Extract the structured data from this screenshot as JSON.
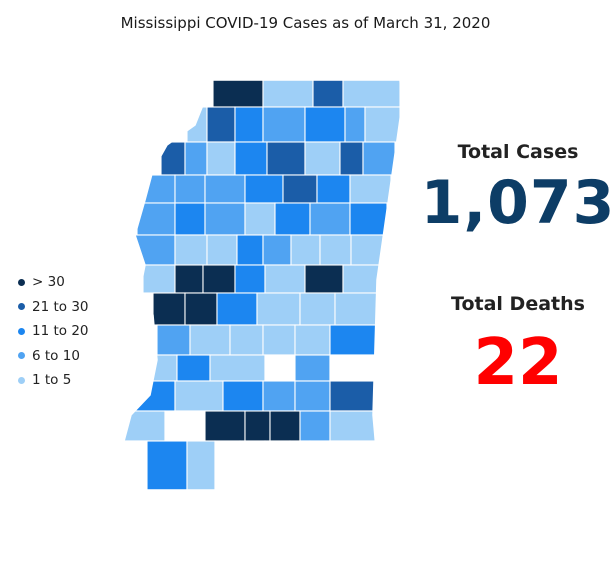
{
  "title": "Mississippi COVID-19 Cases as of March 31, 2020",
  "legend": [
    {
      "label": "> 30",
      "color": "#0b2e52"
    },
    {
      "label": "21 to 30",
      "color": "#1b5da8"
    },
    {
      "label": "11 to 20",
      "color": "#1c86f0"
    },
    {
      "label": "6 to 10",
      "color": "#50a3f2"
    },
    {
      "label": "1 to 5",
      "color": "#9ecff7"
    }
  ],
  "no_cases_color": "#ffffff",
  "stats": {
    "cases_label": "Total Cases",
    "cases_value": "1,073",
    "deaths_label": "Total Deaths",
    "deaths_value": "22"
  },
  "colors": {
    "cases_value": "#0d3d66",
    "deaths_value": "#ff0000"
  },
  "counties": [
    {
      "bin": 0
    },
    {
      "bin": 4
    },
    {
      "bin": 1
    },
    {
      "bin": 4
    },
    {
      "bin": 4
    },
    {
      "bin": 1
    },
    {
      "bin": 2
    },
    {
      "bin": 3
    },
    {
      "bin": 2
    },
    {
      "bin": 3
    },
    {
      "bin": 4
    },
    {
      "bin": 1
    },
    {
      "bin": 3
    },
    {
      "bin": 4
    },
    {
      "bin": 2
    },
    {
      "bin": 1
    },
    {
      "bin": 4
    },
    {
      "bin": 1
    },
    {
      "bin": 3
    },
    {
      "bin": 3
    },
    {
      "bin": 3
    },
    {
      "bin": 3
    },
    {
      "bin": 2
    },
    {
      "bin": 1
    },
    {
      "bin": 2
    },
    {
      "bin": 4
    },
    {
      "bin": 3
    },
    {
      "bin": 2
    },
    {
      "bin": 3
    },
    {
      "bin": 4
    },
    {
      "bin": 2
    },
    {
      "bin": 3
    },
    {
      "bin": 2
    },
    {
      "bin": 3
    },
    {
      "bin": 4
    },
    {
      "bin": 4
    },
    {
      "bin": 2
    },
    {
      "bin": 3
    },
    {
      "bin": 4
    },
    {
      "bin": 4
    },
    {
      "bin": 4
    },
    {
      "bin": 4
    },
    {
      "bin": 0
    },
    {
      "bin": 0
    },
    {
      "bin": 2
    },
    {
      "bin": 4
    },
    {
      "bin": 0
    },
    {
      "bin": 4
    },
    {
      "bin": 0
    },
    {
      "bin": 0
    },
    {
      "bin": 2
    },
    {
      "bin": 4
    },
    {
      "bin": 4
    },
    {
      "bin": 4
    },
    {
      "bin": 3
    },
    {
      "bin": 4
    },
    {
      "bin": 4
    },
    {
      "bin": 4
    },
    {
      "bin": 4
    },
    {
      "bin": 2
    },
    {
      "bin": 4
    },
    {
      "bin": 2
    },
    {
      "bin": 4
    },
    {
      "bin": 5
    },
    {
      "bin": 3
    },
    {
      "bin": 5
    },
    {
      "bin": 2
    },
    {
      "bin": 4
    },
    {
      "bin": 2
    },
    {
      "bin": 3
    },
    {
      "bin": 3
    },
    {
      "bin": 1
    },
    {
      "bin": 4
    },
    {
      "bin": 5
    },
    {
      "bin": 0
    },
    {
      "bin": 0
    },
    {
      "bin": 0
    },
    {
      "bin": 3
    },
    {
      "bin": 4
    },
    {
      "bin": 5
    },
    {
      "bin": 2
    },
    {
      "bin": 4
    }
  ]
}
